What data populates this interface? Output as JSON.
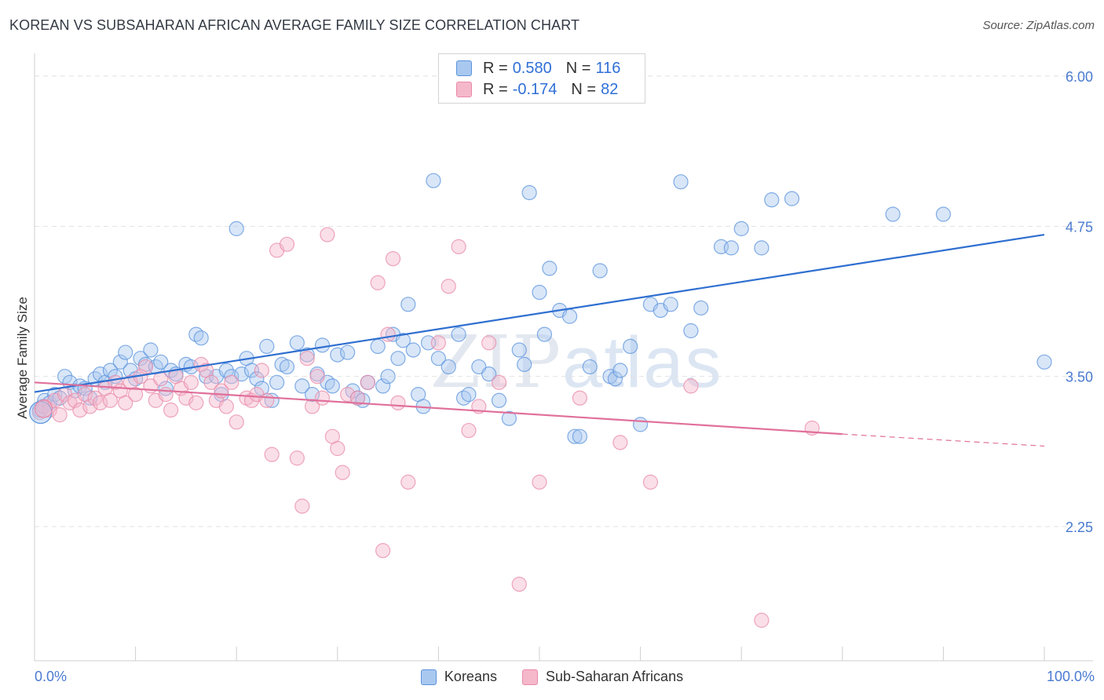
{
  "header": {
    "title": "KOREAN VS SUBSAHARAN AFRICAN AVERAGE FAMILY SIZE CORRELATION CHART",
    "source": "Source: ZipAtlas.com"
  },
  "watermark": {
    "zip": "ZIP",
    "atlas": "atlas"
  },
  "legend": {
    "rows": [
      {
        "r_label": "R =",
        "r_value": "0.580",
        "n_label": "N =",
        "n_value": "116",
        "color": "#a9c8f0"
      },
      {
        "r_label": "R =",
        "r_value": "-0.174",
        "n_label": "N =",
        "n_value": "82",
        "color": "#f5b8cb"
      }
    ]
  },
  "bottom_legend": [
    {
      "label": "Koreans",
      "color": "#a9c8f0"
    },
    {
      "label": "Sub-Saharan Africans",
      "color": "#f5b8cb"
    }
  ],
  "chart_data": {
    "type": "scatter",
    "title": "KOREAN VS SUBSAHARAN AFRICAN AVERAGE FAMILY SIZE CORRELATION CHART",
    "xlabel": "",
    "ylabel": "Average Family Size",
    "xlim": [
      0,
      100
    ],
    "ylim": [
      1.25,
      6.1
    ],
    "y_ticks": [
      {
        "value": 6.0,
        "label": "6.00"
      },
      {
        "value": 4.75,
        "label": "4.75"
      },
      {
        "value": 3.5,
        "label": "3.50"
      },
      {
        "value": 2.25,
        "label": "2.25"
      }
    ],
    "x_tick_labels": [
      {
        "value": 0,
        "label": "0.0%"
      },
      {
        "value": 100,
        "label": "100.0%"
      }
    ],
    "grid": "horizontal dashed",
    "legend_position": "top-center",
    "series": [
      {
        "name": "Koreans",
        "color": "#5b93dc",
        "fill": "#a9c8f0",
        "trend": {
          "x0": 0,
          "y0": 3.37,
          "x1": 100,
          "y1": 4.68,
          "color": "#2f6fd0"
        },
        "points": [
          [
            0.5,
            3.22
          ],
          [
            0.8,
            3.25
          ],
          [
            1.0,
            3.3
          ],
          [
            1.5,
            3.28
          ],
          [
            2,
            3.35
          ],
          [
            2.5,
            3.32
          ],
          [
            3,
            3.5
          ],
          [
            3.5,
            3.45
          ],
          [
            4,
            3.38
          ],
          [
            4.5,
            3.42
          ],
          [
            5,
            3.4
          ],
          [
            5.5,
            3.32
          ],
          [
            6,
            3.48
          ],
          [
            6.5,
            3.52
          ],
          [
            7,
            3.45
          ],
          [
            7.5,
            3.55
          ],
          [
            8,
            3.5
          ],
          [
            8.5,
            3.62
          ],
          [
            9,
            3.7
          ],
          [
            9.5,
            3.55
          ],
          [
            10,
            3.48
          ],
          [
            10.5,
            3.65
          ],
          [
            11,
            3.6
          ],
          [
            11.5,
            3.72
          ],
          [
            12,
            3.58
          ],
          [
            12.5,
            3.62
          ],
          [
            13,
            3.4
          ],
          [
            13.5,
            3.55
          ],
          [
            14,
            3.52
          ],
          [
            15,
            3.6
          ],
          [
            15.5,
            3.58
          ],
          [
            16,
            3.85
          ],
          [
            16.5,
            3.82
          ],
          [
            17,
            3.5
          ],
          [
            18,
            3.5
          ],
          [
            18.5,
            3.35
          ],
          [
            19,
            3.55
          ],
          [
            19.5,
            3.5
          ],
          [
            20,
            4.73
          ],
          [
            20.5,
            3.52
          ],
          [
            21,
            3.65
          ],
          [
            21.5,
            3.55
          ],
          [
            22,
            3.48
          ],
          [
            22.5,
            3.4
          ],
          [
            23,
            3.75
          ],
          [
            23.5,
            3.3
          ],
          [
            24,
            3.45
          ],
          [
            24.5,
            3.6
          ],
          [
            25,
            3.58
          ],
          [
            26,
            3.78
          ],
          [
            26.5,
            3.42
          ],
          [
            27,
            3.68
          ],
          [
            27.5,
            3.35
          ],
          [
            28,
            3.52
          ],
          [
            28.5,
            3.76
          ],
          [
            29,
            3.45
          ],
          [
            29.5,
            3.42
          ],
          [
            30,
            3.68
          ],
          [
            31,
            3.7
          ],
          [
            31.5,
            3.38
          ],
          [
            32,
            3.32
          ],
          [
            32.5,
            3.3
          ],
          [
            33,
            3.45
          ],
          [
            34,
            3.75
          ],
          [
            34.5,
            3.42
          ],
          [
            35,
            3.5
          ],
          [
            35.5,
            3.85
          ],
          [
            36,
            3.65
          ],
          [
            36.5,
            3.8
          ],
          [
            37,
            4.1
          ],
          [
            37.5,
            3.72
          ],
          [
            38,
            3.35
          ],
          [
            38.5,
            3.25
          ],
          [
            39,
            3.78
          ],
          [
            39.5,
            5.13
          ],
          [
            40,
            3.65
          ],
          [
            41,
            3.58
          ],
          [
            42,
            3.85
          ],
          [
            42.5,
            3.32
          ],
          [
            43,
            3.35
          ],
          [
            44,
            3.58
          ],
          [
            45,
            3.52
          ],
          [
            46,
            3.3
          ],
          [
            47,
            3.15
          ],
          [
            48,
            3.72
          ],
          [
            48.5,
            3.6
          ],
          [
            49,
            5.03
          ],
          [
            50,
            4.2
          ],
          [
            50.5,
            3.85
          ],
          [
            51,
            4.4
          ],
          [
            52,
            4.05
          ],
          [
            53,
            4.0
          ],
          [
            53.5,
            3.0
          ],
          [
            54,
            3.0
          ],
          [
            55,
            3.58
          ],
          [
            56,
            4.38
          ],
          [
            57,
            3.5
          ],
          [
            57.5,
            3.48
          ],
          [
            58,
            3.55
          ],
          [
            59,
            3.75
          ],
          [
            60,
            3.1
          ],
          [
            61,
            4.1
          ],
          [
            62,
            4.05
          ],
          [
            63,
            4.1
          ],
          [
            64,
            5.12
          ],
          [
            65,
            3.88
          ],
          [
            66,
            4.07
          ],
          [
            68,
            4.58
          ],
          [
            69,
            4.57
          ],
          [
            70,
            4.73
          ],
          [
            72,
            4.57
          ],
          [
            73,
            4.97
          ],
          [
            75,
            4.98
          ],
          [
            85,
            4.85
          ],
          [
            90,
            4.85
          ],
          [
            100,
            3.62
          ]
        ]
      },
      {
        "name": "Sub-Saharan Africans",
        "color": "#e889a8",
        "fill": "#f5b8cb",
        "trend": {
          "x0": 0,
          "y0": 3.45,
          "x1": 80,
          "y1": 3.02,
          "x2": 100,
          "y2": 2.92,
          "color": "#e0709a"
        },
        "points": [
          [
            0.5,
            3.2
          ],
          [
            1,
            3.25
          ],
          [
            1.5,
            3.22
          ],
          [
            2,
            3.3
          ],
          [
            2.5,
            3.18
          ],
          [
            3,
            3.35
          ],
          [
            3.5,
            3.28
          ],
          [
            4,
            3.3
          ],
          [
            4.5,
            3.22
          ],
          [
            5,
            3.35
          ],
          [
            5.5,
            3.25
          ],
          [
            6,
            3.32
          ],
          [
            6.5,
            3.28
          ],
          [
            7,
            3.4
          ],
          [
            7.5,
            3.3
          ],
          [
            8,
            3.45
          ],
          [
            8.5,
            3.38
          ],
          [
            9,
            3.28
          ],
          [
            9.5,
            3.45
          ],
          [
            10,
            3.35
          ],
          [
            10.5,
            3.5
          ],
          [
            11,
            3.58
          ],
          [
            11.5,
            3.42
          ],
          [
            12,
            3.3
          ],
          [
            12.5,
            3.48
          ],
          [
            13,
            3.35
          ],
          [
            13.5,
            3.22
          ],
          [
            14,
            3.5
          ],
          [
            14.5,
            3.4
          ],
          [
            15,
            3.32
          ],
          [
            15.5,
            3.45
          ],
          [
            16,
            3.28
          ],
          [
            16.5,
            3.6
          ],
          [
            17,
            3.55
          ],
          [
            17.5,
            3.45
          ],
          [
            18,
            3.3
          ],
          [
            18.5,
            3.38
          ],
          [
            19,
            3.25
          ],
          [
            19.5,
            3.45
          ],
          [
            20,
            3.12
          ],
          [
            21,
            3.32
          ],
          [
            21.5,
            3.3
          ],
          [
            22,
            3.35
          ],
          [
            22.5,
            3.55
          ],
          [
            23,
            3.3
          ],
          [
            23.5,
            2.85
          ],
          [
            24,
            4.55
          ],
          [
            25,
            4.6
          ],
          [
            26,
            2.82
          ],
          [
            26.5,
            2.42
          ],
          [
            27,
            3.65
          ],
          [
            27.5,
            3.25
          ],
          [
            28,
            3.5
          ],
          [
            28.5,
            3.32
          ],
          [
            29,
            4.68
          ],
          [
            29.5,
            3.0
          ],
          [
            30,
            2.9
          ],
          [
            30.5,
            2.7
          ],
          [
            31,
            3.35
          ],
          [
            32,
            3.32
          ],
          [
            33,
            3.45
          ],
          [
            34,
            4.28
          ],
          [
            34.5,
            2.05
          ],
          [
            35,
            3.85
          ],
          [
            35.5,
            4.48
          ],
          [
            36,
            3.28
          ],
          [
            37,
            2.62
          ],
          [
            40,
            3.78
          ],
          [
            41,
            4.25
          ],
          [
            42,
            4.58
          ],
          [
            43,
            3.05
          ],
          [
            44,
            3.25
          ],
          [
            45,
            3.78
          ],
          [
            46,
            3.45
          ],
          [
            48,
            1.77
          ],
          [
            50,
            2.62
          ],
          [
            54,
            3.32
          ],
          [
            58,
            2.95
          ],
          [
            61,
            2.62
          ],
          [
            65,
            3.42
          ],
          [
            72,
            1.47
          ],
          [
            77,
            3.07
          ]
        ]
      }
    ]
  }
}
